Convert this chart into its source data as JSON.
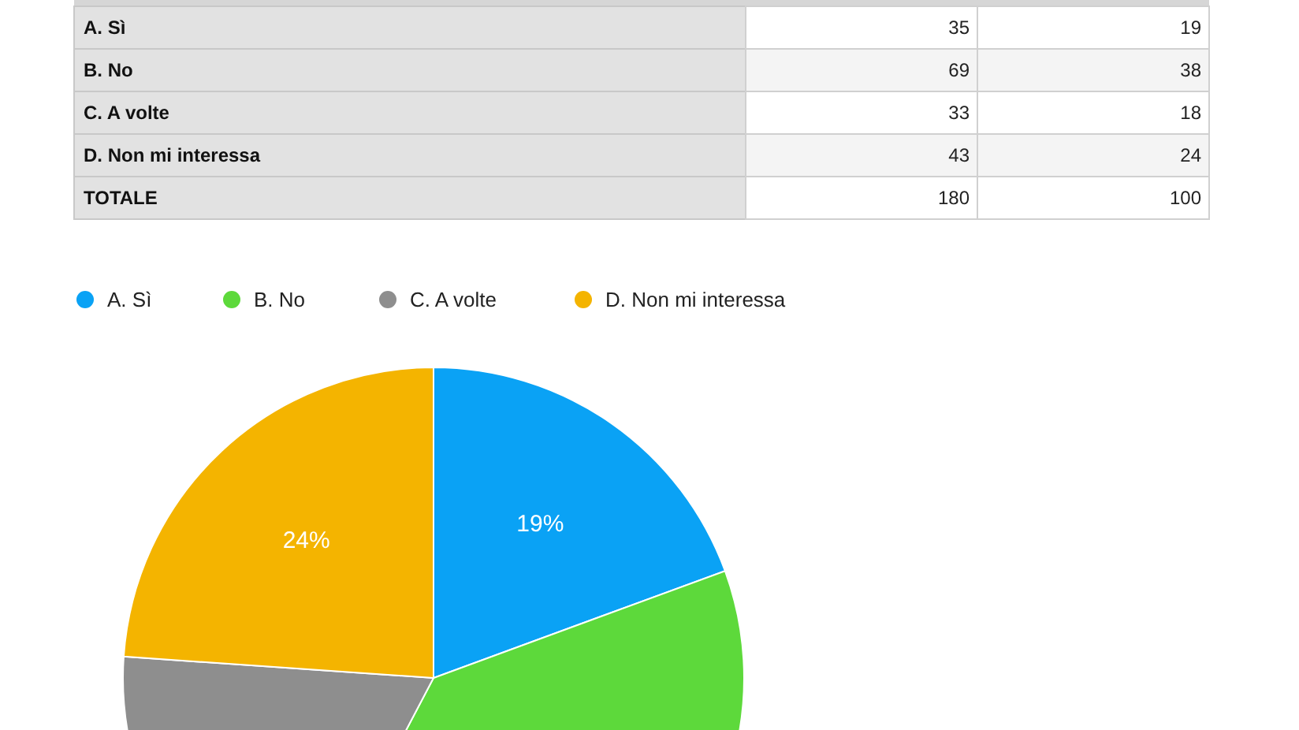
{
  "chart_data": [
    {
      "type": "other",
      "categories": [
        "A. Sì",
        "B. No",
        "C. A volte",
        "D. Non mi interessa",
        "TOTALE"
      ],
      "series": [
        {
          "values": [
            35,
            69,
            33,
            43,
            180
          ],
          "colors": [
            "#ffffff",
            "#f4f4f4",
            "#ffffff",
            "#f4f4f4",
            "#ffffff"
          ]
        },
        {
          "values": [
            19,
            38,
            18,
            24,
            100
          ],
          "colors": [
            "#ffffff",
            "#f4f4f4",
            "#ffffff",
            "#f4f4f4",
            "#ffffff"
          ]
        }
      ],
      "data_labels": true
    },
    {
      "type": "pie",
      "categories": [
        "A. Sì",
        "B. No",
        "C. A volte",
        "D. Non mi interessa"
      ],
      "values": [
        19.4,
        38.3,
        18.4,
        23.9
      ],
      "colors": [
        "#0aa2f5",
        "#5dd93b",
        "#8e8e8e",
        "#f4b400"
      ],
      "annotations": [
        {
          "text": "19%",
          "x": "A. Sì"
        },
        {
          "text": "24%",
          "x": "D. Non mi interessa"
        }
      ],
      "legend": "top left"
    }
  ]
}
